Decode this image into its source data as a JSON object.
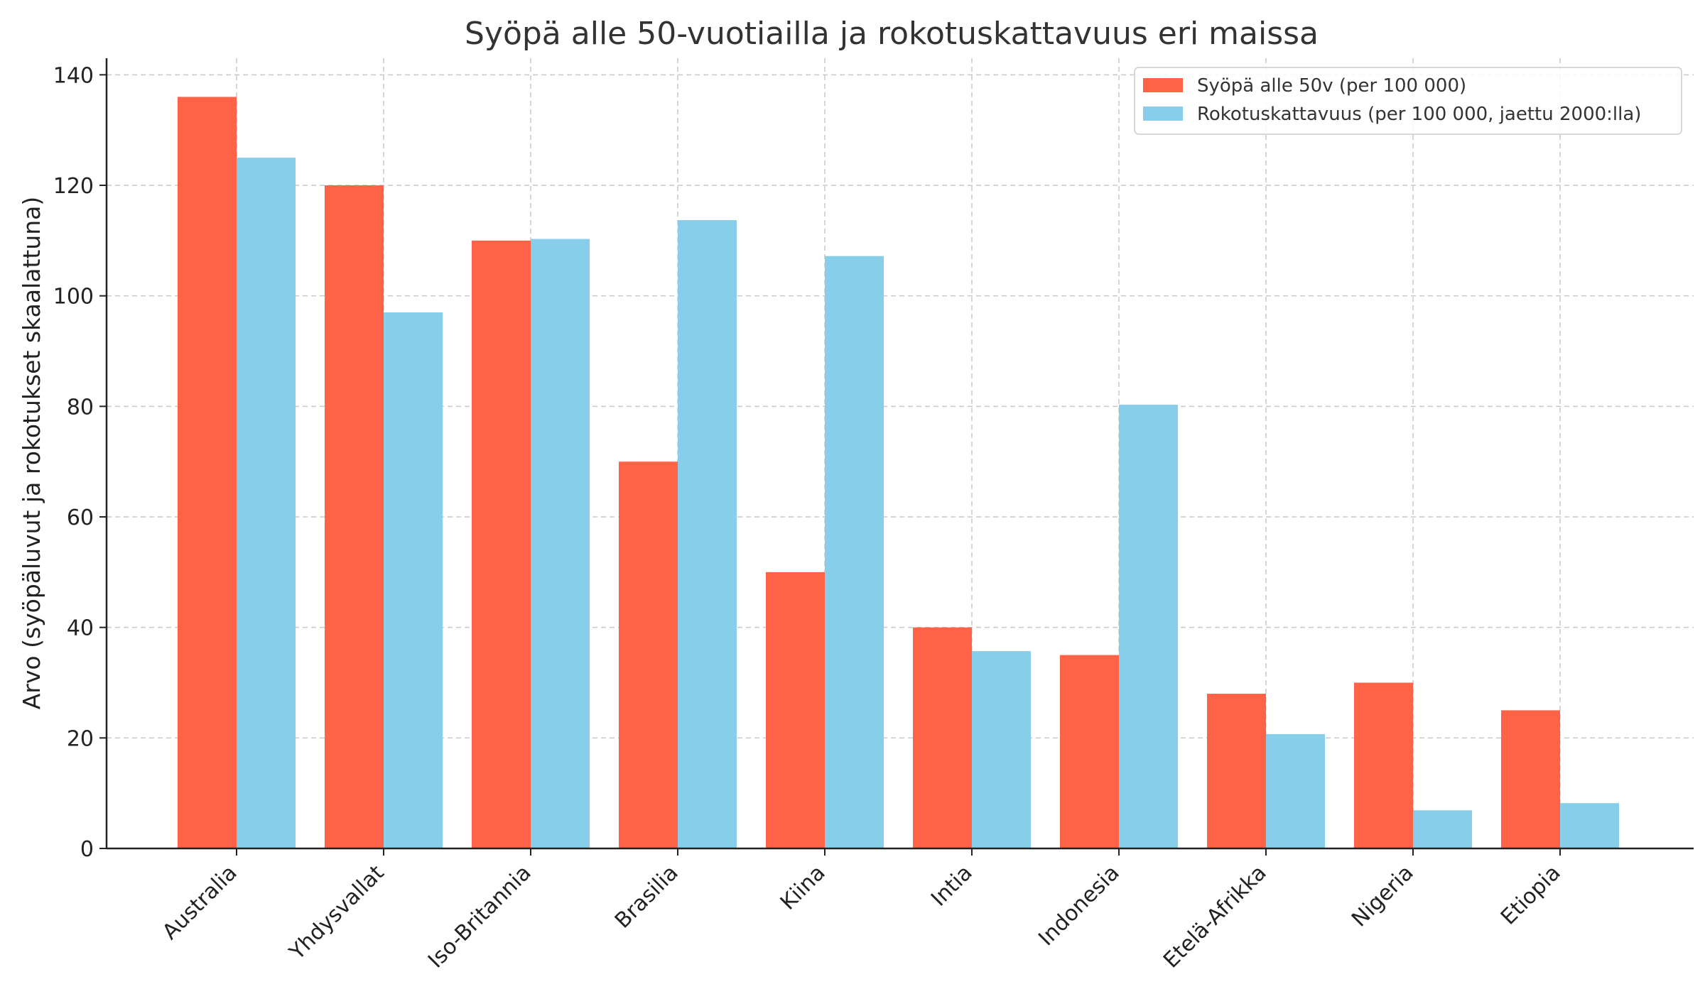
{
  "chart_data": {
    "type": "bar",
    "title": "Syöpä alle 50-vuotiailla ja rokotuskattavuus eri maissa",
    "xlabel": "",
    "ylabel": "Arvo (syöpäluvut ja rokotukset skaalattuna)",
    "ylim": [
      0,
      143
    ],
    "yticks": [
      0,
      20,
      40,
      60,
      80,
      100,
      120,
      140
    ],
    "grid": true,
    "legend_position": "top-right",
    "categories": [
      "Australia",
      "Yhdysvallat",
      "Iso-Britannia",
      "Brasilia",
      "Kiina",
      "Intia",
      "Indonesia",
      "Etelä-Afrikka",
      "Nigeria",
      "Etiopia"
    ],
    "series": [
      {
        "name": "Syöpä alle 50v (per 100 000)",
        "color": "#FF6347",
        "values": [
          136,
          120,
          110,
          70,
          50,
          40,
          35,
          28,
          30,
          25
        ]
      },
      {
        "name": "Rokotuskattavuus (per 100 000, jaettu 2000:lla)",
        "color": "#87CEEB",
        "values": [
          125,
          97,
          110.3,
          113.7,
          107.2,
          35.7,
          80.3,
          20.7,
          6.9,
          8.2
        ]
      }
    ]
  }
}
